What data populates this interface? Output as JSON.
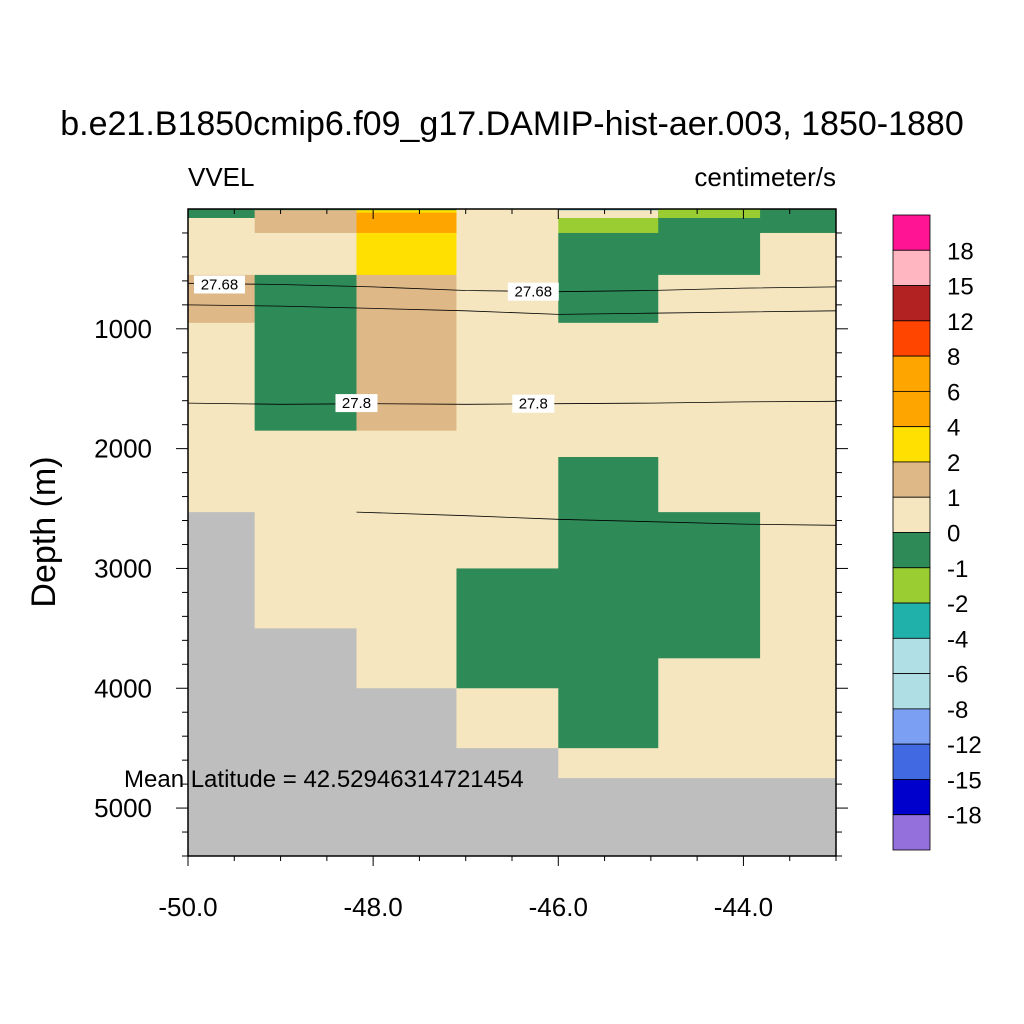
{
  "chart_data": {
    "type": "heatmap",
    "title": "b.e21.B1850cmip6.f09_g17.DAMIP-hist-aer.003, 1850-1880",
    "left_label": "VVEL",
    "right_label": "centimeter/s",
    "ylabel": "Depth (m)",
    "xlabel": "",
    "annotation": "Mean Latitude = 42.52946314721454",
    "xlim": [
      -50.0,
      -43.0
    ],
    "ylim": [
      0,
      5400
    ],
    "y_reversed": true,
    "x_ticks": [
      -50.0,
      -48.0,
      -46.0,
      -44.0
    ],
    "x_tick_labels": [
      "-50.0",
      "-48.0",
      "-46.0",
      "-44.0"
    ],
    "y_ticks": [
      1000,
      2000,
      3000,
      4000,
      5000
    ],
    "y_tick_labels": [
      "1000",
      "2000",
      "3000",
      "4000",
      "5000"
    ],
    "x_edges": [
      -50.0,
      -49.28,
      -48.18,
      -47.1,
      -46.0,
      -44.92,
      -43.82,
      -43.0
    ],
    "y_edges": [
      0,
      75,
      200,
      550,
      950,
      1850,
      2070,
      2530,
      3000,
      3500,
      3750,
      4000,
      4500,
      4750,
      5400
    ],
    "bins": [
      {
        "label": "18",
        "color": "#FF1493"
      },
      {
        "label": "15",
        "color": "#FFB6C1"
      },
      {
        "label": "12",
        "color": "#B22222"
      },
      {
        "label": "8",
        "color": "#FF4500"
      },
      {
        "label": "6",
        "color": "#FFA500"
      },
      {
        "label": "4",
        "color": "#FFA500"
      },
      {
        "label": "2",
        "color": "#FFE000"
      },
      {
        "label": "1",
        "color": "#DEB887"
      },
      {
        "label": "0",
        "color": "#F5E6C0"
      },
      {
        "label": "-1",
        "color": "#2E8B57"
      },
      {
        "label": "-2",
        "color": "#9ACD32"
      },
      {
        "label": "-4",
        "color": "#20B2AA"
      },
      {
        "label": "-6",
        "color": "#B0E0E6"
      },
      {
        "label": "-8",
        "color": "#AFDFE4"
      },
      {
        "label": "-12",
        "color": "#7B9FF2"
      },
      {
        "label": "-15",
        "color": "#4169E1"
      },
      {
        "label": "-18",
        "color": "#0000CD"
      },
      {
        "label": "",
        "color": "#9370DB"
      }
    ],
    "missing_color": "#BEBEBE",
    "cells": [
      [
        "g",
        "f",
        "y",
        "e",
        "e",
        "d",
        "d"
      ],
      [
        "e",
        "f",
        "y",
        "e",
        "l",
        "g",
        "g"
      ],
      [
        "e",
        "e",
        "y",
        "e",
        "g",
        "g",
        "e"
      ],
      [
        "f",
        "g",
        "f",
        "e",
        "g",
        "e",
        "e"
      ],
      [
        "e",
        "g",
        "f",
        "e",
        "e",
        "e",
        "e"
      ],
      [
        "e",
        "e",
        "e",
        "e",
        "e",
        "e",
        "e"
      ],
      [
        "e",
        "e",
        "e",
        "e",
        "g",
        "e",
        "e"
      ],
      [
        "m",
        "e",
        "e",
        "e",
        "g",
        "g",
        "e"
      ],
      [
        "m",
        "e",
        "e",
        "g",
        "g",
        "g",
        "e"
      ],
      [
        "m",
        "m",
        "e",
        "g",
        "g",
        "g",
        "e"
      ],
      [
        "m",
        "m",
        "e",
        "g",
        "g",
        "e",
        "e"
      ],
      [
        "m",
        "m",
        "m",
        "e",
        "g",
        "e",
        "e"
      ],
      [
        "m",
        "m",
        "m",
        "m",
        "e",
        "e",
        "e"
      ],
      [
        "m",
        "m",
        "m",
        "m",
        "m",
        "m",
        "m"
      ]
    ],
    "cell_codes": {
      "d": "#2E8B57",
      "g": "#2E8B57",
      "e": "#F5E6C0",
      "f": "#DEB887",
      "y": "#FFE000",
      "l": "#9ACD32",
      "m": "#BEBEBE"
    },
    "overlays": [
      {
        "x0": -48.18,
        "x1": -47.1,
        "y0": 30,
        "y1": 200,
        "color": "#FFA500"
      },
      {
        "x0": -48.18,
        "x1": -47.1,
        "y0": 0,
        "y1": 30,
        "color": "#FFE000"
      },
      {
        "x0": -50.0,
        "x1": -47.1,
        "y0": 0,
        "y1": 10,
        "color": "#2E8B57"
      },
      {
        "x0": -46.0,
        "x1": -44.92,
        "y0": 0,
        "y1": 10,
        "color": "#1E90B0"
      },
      {
        "x0": -44.92,
        "x1": -43.82,
        "y0": 0,
        "y1": 75,
        "color": "#9ACD32"
      }
    ],
    "contours": [
      {
        "label": "27.68",
        "points": [
          [
            -50.0,
            620
          ],
          [
            -49.0,
            630
          ],
          [
            -48.0,
            650
          ],
          [
            -47.0,
            680
          ],
          [
            -46.0,
            690
          ],
          [
            -45.0,
            680
          ],
          [
            -44.0,
            660
          ],
          [
            -43.0,
            650
          ]
        ]
      },
      {
        "label": "",
        "points": [
          [
            -50.0,
            800
          ],
          [
            -49.0,
            810
          ],
          [
            -48.0,
            830
          ],
          [
            -47.0,
            850
          ],
          [
            -46.0,
            880
          ],
          [
            -45.0,
            870
          ],
          [
            -44.0,
            860
          ],
          [
            -43.0,
            850
          ]
        ]
      },
      {
        "label": "27.8",
        "points": [
          [
            -50.0,
            1620
          ],
          [
            -49.0,
            1630
          ],
          [
            -48.0,
            1625
          ],
          [
            -47.0,
            1630
          ],
          [
            -46.0,
            1625
          ],
          [
            -45.0,
            1620
          ],
          [
            -44.0,
            1610
          ],
          [
            -43.0,
            1605
          ]
        ]
      },
      {
        "label": "",
        "points": [
          [
            -48.18,
            2530
          ],
          [
            -47.0,
            2560
          ],
          [
            -46.0,
            2590
          ],
          [
            -45.0,
            2610
          ],
          [
            -44.0,
            2630
          ],
          [
            -43.0,
            2640
          ]
        ]
      }
    ],
    "contour_labels": [
      {
        "text": "27.68",
        "x": -49.66,
        "y": 630
      },
      {
        "text": "27.68",
        "x": -46.27,
        "y": 690
      },
      {
        "text": "27.8",
        "x": -48.18,
        "y": 1620
      },
      {
        "text": "27.8",
        "x": -46.27,
        "y": 1625
      }
    ]
  }
}
